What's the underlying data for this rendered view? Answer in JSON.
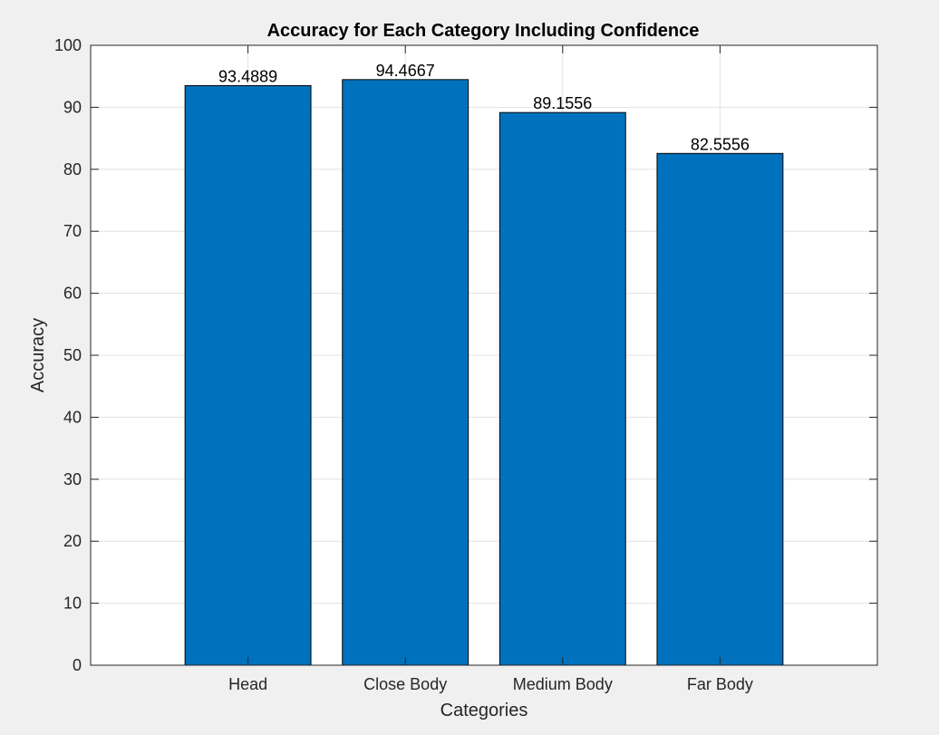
{
  "chart_data": {
    "type": "bar",
    "title": "Accuracy for Each Category Including Confidence",
    "xlabel": "Categories",
    "ylabel": "Accuracy",
    "categories": [
      "Head",
      "Close Body",
      "Medium Body",
      "Far Body"
    ],
    "values": [
      93.4889,
      94.4667,
      89.1556,
      82.5556
    ],
    "data_labels": [
      "93.4889",
      "94.4667",
      "89.1556",
      "82.5556"
    ],
    "ylim": [
      0,
      100
    ],
    "yticks": [
      0,
      10,
      20,
      30,
      40,
      50,
      60,
      70,
      80,
      90,
      100
    ],
    "xlim": [
      0,
      5
    ],
    "grid": true,
    "bar_color": "#0072bd",
    "background_color": "#f0f0f0"
  }
}
